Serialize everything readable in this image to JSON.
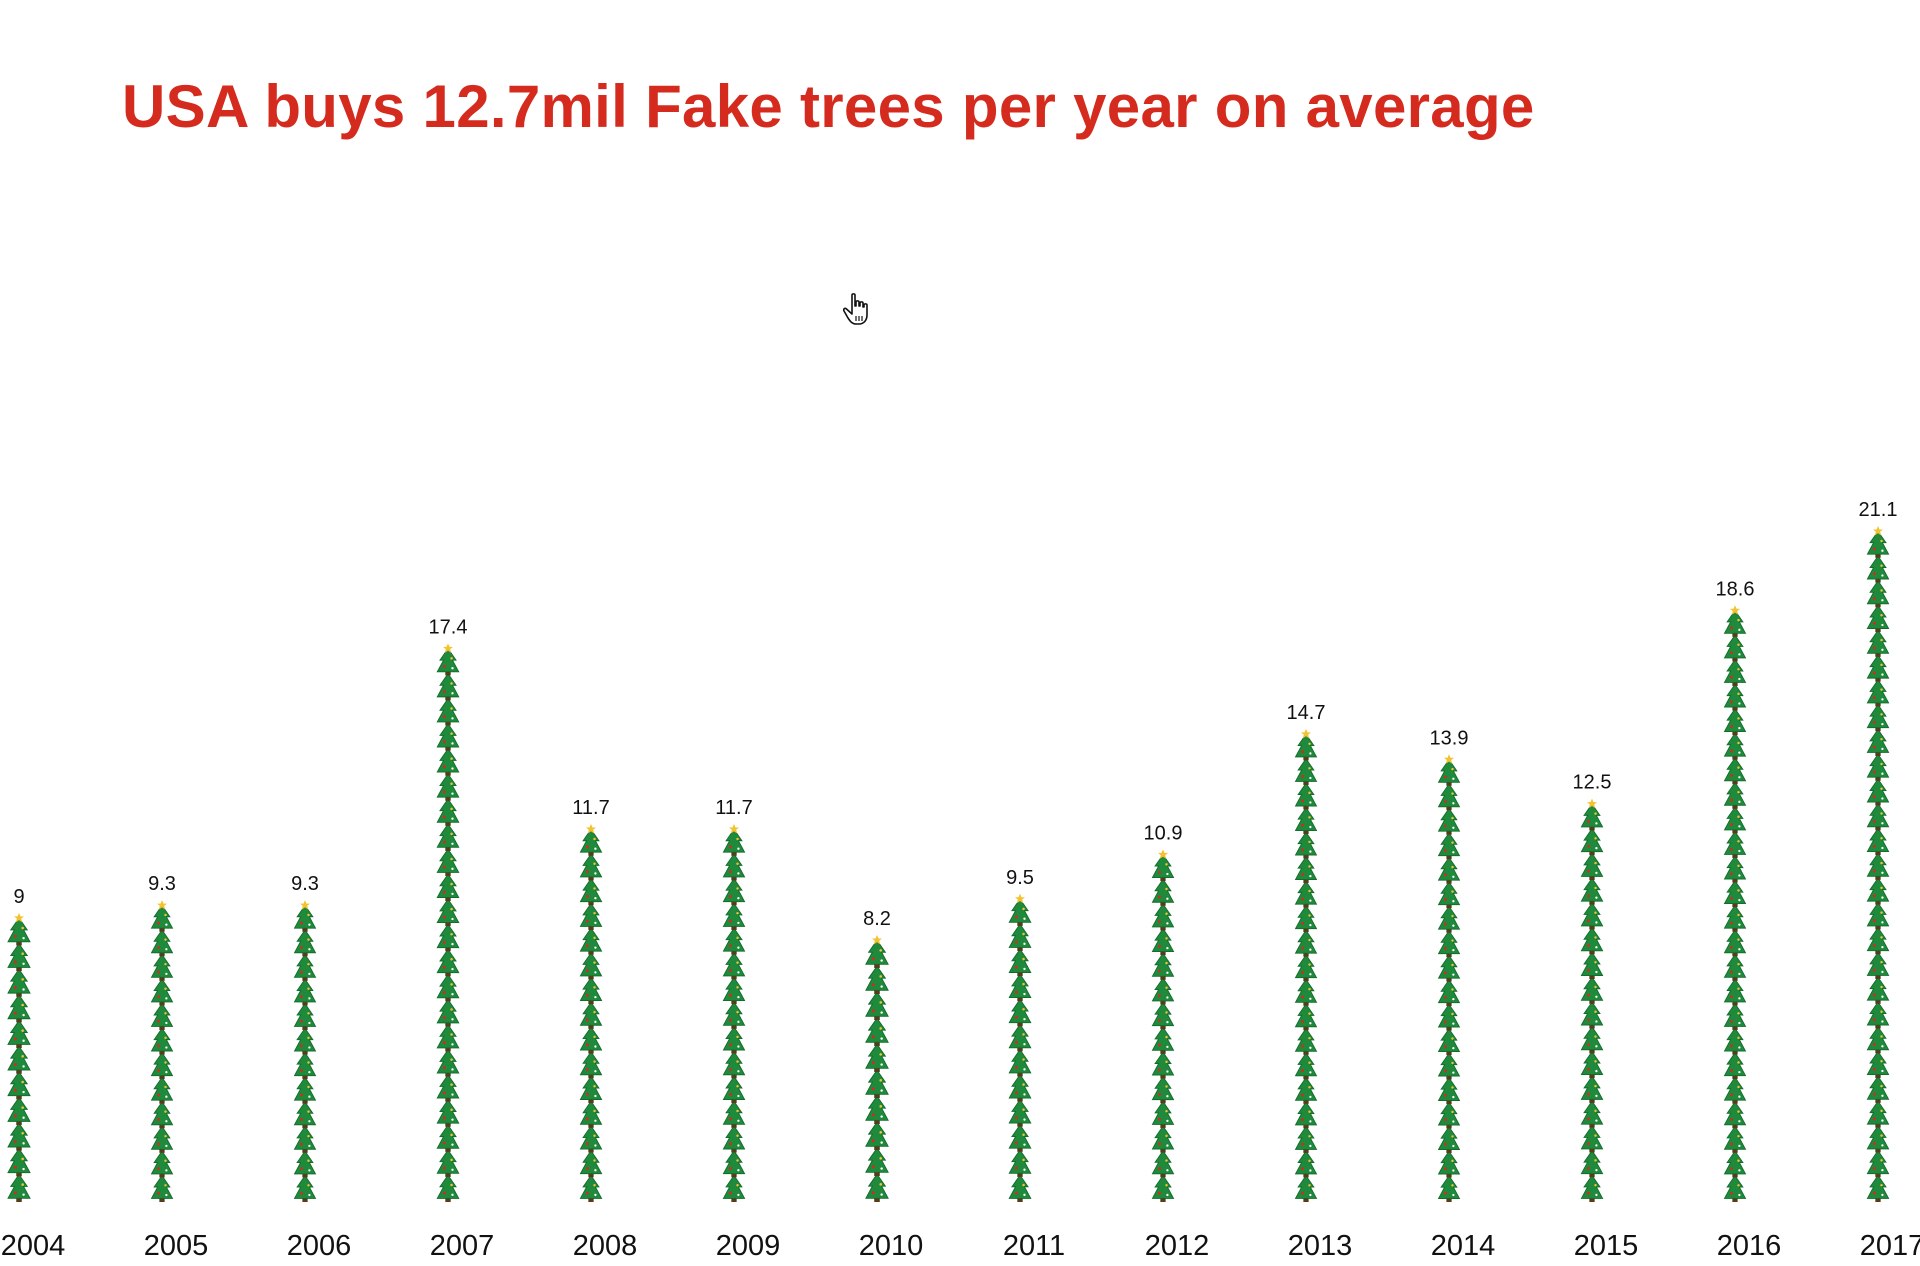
{
  "chart_data": {
    "type": "bar",
    "title": "USA buys 12.7mil Fake trees per year on average",
    "xlabel": "",
    "ylabel": "",
    "categories": [
      "2004",
      "2005",
      "2006",
      "2007",
      "2008",
      "2009",
      "2010",
      "2011",
      "2012",
      "2013",
      "2014",
      "2015",
      "2016",
      "2017"
    ],
    "values": [
      8.9,
      9.3,
      9.3,
      17.4,
      11.7,
      11.7,
      8.2,
      9.5,
      10.9,
      14.7,
      13.9,
      12.5,
      18.6,
      21.1
    ],
    "value_labels": [
      "9",
      "9.3",
      "9.3",
      "17.4",
      "11.7",
      "11.7",
      "8.2",
      "9.5",
      "10.9",
      "14.7",
      "13.9",
      "12.5",
      "18.6",
      "21.1"
    ],
    "mark": "christmas-tree-icon",
    "ylim": [
      0,
      21.1
    ],
    "grid": false,
    "legend": "none",
    "colors": {
      "title": "#d42b1e",
      "tree": "#1f8a3b",
      "tree_dark": "#116b2b",
      "trunk": "#5a3a1a",
      "star": "#f2c230",
      "ornament": "#d42b1e",
      "text": "#111111"
    }
  },
  "cursor": {
    "icon": "hand-pointer-icon"
  }
}
